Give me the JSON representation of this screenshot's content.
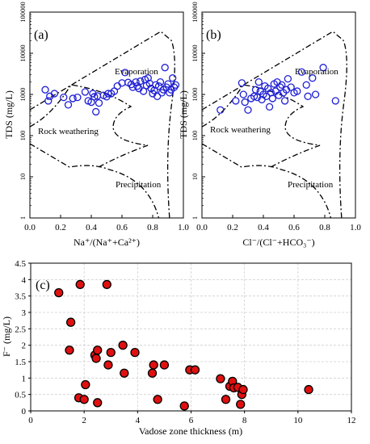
{
  "chart_data": [
    {
      "panel": "(a)",
      "type": "scatter",
      "title": "",
      "xlabel": "Na⁺/(Na⁺+Ca²⁺)",
      "ylabel": "TDS (mg/L)",
      "xlim": [
        0.0,
        1.0
      ],
      "ylim": [
        1,
        100000
      ],
      "yscale": "log",
      "xticks": [
        "0.0",
        "0.2",
        "0.4",
        "0.6",
        "0.8",
        "1.0"
      ],
      "yticks": [
        "1",
        "10",
        "100",
        "1000",
        "10000",
        "100000"
      ],
      "marker": "open-circle",
      "marker_color": "#1f1fd6",
      "regions": [
        "Evaporation",
        "Rock weathering",
        "Precipitation"
      ],
      "grid": false,
      "points": [
        [
          0.1,
          1300
        ],
        [
          0.12,
          700
        ],
        [
          0.13,
          900
        ],
        [
          0.16,
          1050
        ],
        [
          0.22,
          850
        ],
        [
          0.25,
          560
        ],
        [
          0.28,
          800
        ],
        [
          0.31,
          850
        ],
        [
          0.36,
          1150
        ],
        [
          0.38,
          700
        ],
        [
          0.4,
          650
        ],
        [
          0.41,
          1050
        ],
        [
          0.42,
          880
        ],
        [
          0.43,
          380
        ],
        [
          0.44,
          920
        ],
        [
          0.45,
          620
        ],
        [
          0.48,
          950
        ],
        [
          0.5,
          880
        ],
        [
          0.51,
          1050
        ],
        [
          0.53,
          1050
        ],
        [
          0.55,
          1200
        ],
        [
          0.57,
          1600
        ],
        [
          0.6,
          1900
        ],
        [
          0.62,
          3400
        ],
        [
          0.64,
          1950
        ],
        [
          0.66,
          1750
        ],
        [
          0.67,
          1500
        ],
        [
          0.69,
          2000
        ],
        [
          0.7,
          1600
        ],
        [
          0.71,
          1400
        ],
        [
          0.72,
          2100
        ],
        [
          0.74,
          1200
        ],
        [
          0.75,
          2300
        ],
        [
          0.76,
          1650
        ],
        [
          0.77,
          2500
        ],
        [
          0.78,
          1850
        ],
        [
          0.79,
          1400
        ],
        [
          0.8,
          1050
        ],
        [
          0.81,
          1250
        ],
        [
          0.82,
          1700
        ],
        [
          0.83,
          900
        ],
        [
          0.84,
          1600
        ],
        [
          0.85,
          2000
        ],
        [
          0.86,
          1100
        ],
        [
          0.87,
          1300
        ],
        [
          0.88,
          4500
        ],
        [
          0.89,
          1500
        ],
        [
          0.9,
          1800
        ],
        [
          0.91,
          1100
        ],
        [
          0.92,
          1300
        ],
        [
          0.93,
          2500
        ],
        [
          0.94,
          1500
        ],
        [
          0.95,
          1700
        ]
      ]
    },
    {
      "panel": "(b)",
      "type": "scatter",
      "title": "",
      "xlabel": "Cl⁻/(Cl⁻+HCO₃⁻)",
      "ylabel": "TDS (mg/L)",
      "xlim": [
        0.0,
        1.0
      ],
      "ylim": [
        1,
        100000
      ],
      "yscale": "log",
      "xticks": [
        "0.0",
        "0.2",
        "0.4",
        "0.6",
        "0.8",
        "1.0"
      ],
      "yticks": [
        "1",
        "10",
        "100",
        "1000",
        "10000",
        "100000"
      ],
      "marker": "open-circle",
      "marker_color": "#1f1fd6",
      "regions": [
        "Evaporation",
        "Rock weathering",
        "Precipitation"
      ],
      "grid": false,
      "points": [
        [
          0.12,
          420
        ],
        [
          0.22,
          700
        ],
        [
          0.26,
          1900
        ],
        [
          0.27,
          1000
        ],
        [
          0.28,
          650
        ],
        [
          0.3,
          420
        ],
        [
          0.32,
          800
        ],
        [
          0.34,
          900
        ],
        [
          0.35,
          1300
        ],
        [
          0.36,
          850
        ],
        [
          0.37,
          2000
        ],
        [
          0.38,
          1200
        ],
        [
          0.39,
          750
        ],
        [
          0.4,
          1000
        ],
        [
          0.41,
          1600
        ],
        [
          0.42,
          900
        ],
        [
          0.43,
          1400
        ],
        [
          0.44,
          500
        ],
        [
          0.45,
          1100
        ],
        [
          0.46,
          800
        ],
        [
          0.47,
          1800
        ],
        [
          0.48,
          1200
        ],
        [
          0.49,
          2000
        ],
        [
          0.5,
          950
        ],
        [
          0.51,
          1500
        ],
        [
          0.52,
          1700
        ],
        [
          0.53,
          1100
        ],
        [
          0.54,
          700
        ],
        [
          0.55,
          1300
        ],
        [
          0.56,
          2400
        ],
        [
          0.58,
          1500
        ],
        [
          0.6,
          1100
        ],
        [
          0.62,
          1200
        ],
        [
          0.65,
          3500
        ],
        [
          0.68,
          1700
        ],
        [
          0.69,
          900
        ],
        [
          0.72,
          2500
        ],
        [
          0.74,
          1000
        ],
        [
          0.79,
          4500
        ],
        [
          0.87,
          700
        ]
      ]
    },
    {
      "panel": "(c)",
      "type": "scatter",
      "title": "",
      "xlabel": "Vadose zone thickness (m)",
      "ylabel": "F⁻ (mg/L)",
      "xlim": [
        0,
        12
      ],
      "ylim": [
        0,
        4.5
      ],
      "xticks": [
        "0",
        "2",
        "4",
        "6",
        "8",
        "10",
        "12"
      ],
      "yticks": [
        "0",
        "0.5",
        "1",
        "1.5",
        "2",
        "2.5",
        "3",
        "3.5",
        "4",
        "4.5"
      ],
      "marker": "filled-circle",
      "marker_color": "#e01010",
      "grid": true,
      "points": [
        [
          1.05,
          3.6
        ],
        [
          1.5,
          2.7
        ],
        [
          1.45,
          1.85
        ],
        [
          1.8,
          0.4
        ],
        [
          1.85,
          3.85
        ],
        [
          2.0,
          0.35
        ],
        [
          2.05,
          0.8
        ],
        [
          2.4,
          1.7
        ],
        [
          2.45,
          1.6
        ],
        [
          2.5,
          1.85
        ],
        [
          2.5,
          0.25
        ],
        [
          2.85,
          3.85
        ],
        [
          2.9,
          1.4
        ],
        [
          3.0,
          1.78
        ],
        [
          3.45,
          2.0
        ],
        [
          3.5,
          1.15
        ],
        [
          3.9,
          1.78
        ],
        [
          4.55,
          1.15
        ],
        [
          4.6,
          1.4
        ],
        [
          4.75,
          0.35
        ],
        [
          5.0,
          1.4
        ],
        [
          5.75,
          0.15
        ],
        [
          5.95,
          1.25
        ],
        [
          6.15,
          1.25
        ],
        [
          7.1,
          0.98
        ],
        [
          7.3,
          0.35
        ],
        [
          7.45,
          0.75
        ],
        [
          7.55,
          0.9
        ],
        [
          7.6,
          0.7
        ],
        [
          7.75,
          0.72
        ],
        [
          7.85,
          0.2
        ],
        [
          7.9,
          0.5
        ],
        [
          7.95,
          0.65
        ],
        [
          10.4,
          0.65
        ]
      ]
    }
  ]
}
